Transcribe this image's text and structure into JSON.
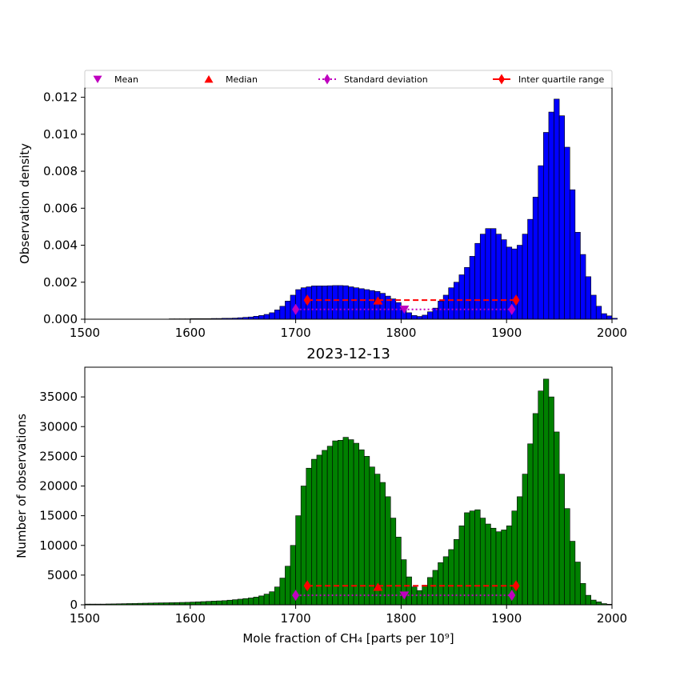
{
  "chart_data": [
    {
      "type": "bar",
      "panel": "top",
      "xlabel": "",
      "ylabel": "Observation density",
      "xlim": [
        1500,
        2000
      ],
      "ylim": [
        0,
        0.0125
      ],
      "xticks": [
        "1500",
        "1600",
        "1700",
        "1800",
        "1900",
        "2000"
      ],
      "yticks": [
        "0.000",
        "0.002",
        "0.004",
        "0.006",
        "0.008",
        "0.010",
        "0.012"
      ],
      "bar_color": "#0000ff",
      "bin_width": 5,
      "x_start": 1500,
      "values": [
        0,
        0,
        0,
        0,
        0,
        0,
        0,
        0,
        0,
        0,
        0,
        0,
        0,
        0,
        0,
        0,
        2e-05,
        2e-05,
        2e-05,
        2e-05,
        3e-05,
        3e-05,
        3e-05,
        3e-05,
        4e-05,
        4e-05,
        5e-05,
        5e-05,
        6e-05,
        8e-05,
        0.0001,
        0.00012,
        0.00016,
        0.0002,
        0.00026,
        0.00035,
        0.0005,
        0.0007,
        0.00098,
        0.0013,
        0.0016,
        0.0017,
        0.00175,
        0.0018,
        0.0018,
        0.0018,
        0.00181,
        0.00182,
        0.00182,
        0.00181,
        0.00175,
        0.0017,
        0.00165,
        0.0016,
        0.00155,
        0.0015,
        0.0014,
        0.00125,
        0.0011,
        0.0009,
        0.0006,
        0.00035,
        0.0002,
        0.00015,
        0.00022,
        0.0004,
        0.0006,
        0.00098,
        0.0013,
        0.0017,
        0.002,
        0.0024,
        0.0028,
        0.0034,
        0.0041,
        0.0046,
        0.0049,
        0.0049,
        0.0046,
        0.0043,
        0.0039,
        0.0038,
        0.004,
        0.0046,
        0.0054,
        0.0066,
        0.0083,
        0.0101,
        0.0112,
        0.0119,
        0.011,
        0.0093,
        0.007,
        0.0047,
        0.0035,
        0.0023,
        0.0013,
        0.0007,
        0.0003,
        0.00018,
        5e-05
      ],
      "markers": [
        {
          "name": "Mean",
          "x": 1803,
          "y": 0.00053,
          "color": "#bf00bf"
        },
        {
          "name": "Median",
          "x": 1778,
          "y": 0.001,
          "color": "#ff0000"
        }
      ],
      "std_range": {
        "name": "Standard deviation",
        "x": [
          1700,
          1905
        ],
        "y": 0.00053,
        "color": "#bf00bf"
      },
      "iqr_range": {
        "name": "Inter quartile range",
        "x": [
          1711,
          1909
        ],
        "y": 0.00103,
        "color": "#ff0000"
      },
      "legend": {
        "placement": "top",
        "entries": [
          "Mean",
          "Median",
          "Standard deviation",
          "Inter quartile range"
        ]
      }
    },
    {
      "type": "bar",
      "panel": "bottom",
      "title": "2023-12-13",
      "xlabel": "Mole fraction of CH₄ [parts per 10⁹]",
      "ylabel": "Number of observations",
      "xlim": [
        1500,
        2000
      ],
      "ylim": [
        0,
        40000
      ],
      "xticks": [
        "1500",
        "1600",
        "1700",
        "1800",
        "1900",
        "2000"
      ],
      "yticks": [
        "0",
        "5000",
        "10000",
        "15000",
        "20000",
        "25000",
        "30000",
        "35000"
      ],
      "bar_color": "#008000",
      "bin_width": 5,
      "x_start": 1500,
      "values": [
        120,
        120,
        120,
        120,
        140,
        150,
        170,
        190,
        210,
        220,
        250,
        270,
        290,
        310,
        330,
        340,
        360,
        380,
        400,
        420,
        460,
        500,
        540,
        580,
        620,
        660,
        700,
        780,
        860,
        950,
        1050,
        1150,
        1300,
        1500,
        1800,
        2200,
        3000,
        4500,
        6500,
        10000,
        15000,
        20000,
        23000,
        24500,
        25200,
        26000,
        26700,
        27600,
        27700,
        28200,
        27800,
        27200,
        26100,
        25000,
        23200,
        22000,
        20600,
        18200,
        14600,
        11400,
        7600,
        4700,
        3000,
        2400,
        3300,
        4600,
        5800,
        7100,
        8100,
        9300,
        11000,
        13300,
        15500,
        15800,
        16000,
        14600,
        13600,
        12900,
        12300,
        12600,
        13300,
        15800,
        18200,
        22000,
        27100,
        32200,
        36000,
        38000,
        35000,
        29100,
        22000,
        16200,
        10700,
        7200,
        3600,
        1600,
        800,
        500,
        200,
        100
      ],
      "markers": [
        {
          "name": "Mean",
          "x": 1803,
          "y": 1600,
          "color": "#bf00bf"
        },
        {
          "name": "Median",
          "x": 1778,
          "y": 3000,
          "color": "#ff0000"
        }
      ],
      "std_range": {
        "name": "Standard deviation",
        "x": [
          1700,
          1905
        ],
        "y": 1600,
        "color": "#bf00bf"
      },
      "iqr_range": {
        "name": "Inter quartile range",
        "x": [
          1711,
          1909
        ],
        "y": 3200,
        "color": "#ff0000"
      }
    }
  ]
}
